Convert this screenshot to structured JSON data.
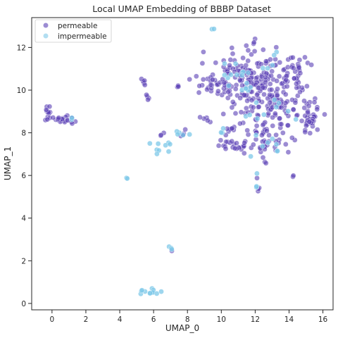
{
  "chart_data": {
    "type": "scatter",
    "title": "Local UMAP Embedding of BBBP Dataset",
    "xlabel": "UMAP_0",
    "ylabel": "UMAP_1",
    "xlim": [
      -1.2,
      16.6
    ],
    "ylim": [
      -0.3,
      13.4
    ],
    "xticks": [
      0,
      2,
      4,
      6,
      8,
      10,
      12,
      14,
      16
    ],
    "yticks": [
      0,
      2,
      4,
      6,
      8,
      10,
      12
    ],
    "grid": false,
    "legend_position": "top-left",
    "series": [
      {
        "name": "permeable",
        "color": "#5a3fb5",
        "clusters": [
          {
            "cx": -0.2,
            "cy": 8.9,
            "sx": 0.15,
            "sy": 0.2,
            "n": 12
          },
          {
            "cx": 0.5,
            "cy": 8.6,
            "sx": 0.4,
            "sy": 0.07,
            "n": 18
          },
          {
            "cx": 1.1,
            "cy": 8.55,
            "sx": 0.1,
            "sy": 0.1,
            "n": 4
          },
          {
            "cx": 5.5,
            "cy": 10.35,
            "sx": 0.12,
            "sy": 0.12,
            "n": 5
          },
          {
            "cx": 5.7,
            "cy": 9.75,
            "sx": 0.12,
            "sy": 0.12,
            "n": 4
          },
          {
            "cx": 6.4,
            "cy": 7.8,
            "sx": 0.1,
            "sy": 0.1,
            "n": 3
          },
          {
            "cx": 7.6,
            "cy": 10.15,
            "sx": 0.12,
            "sy": 0.05,
            "n": 3
          },
          {
            "cx": 7.6,
            "cy": 7.95,
            "sx": 0.2,
            "sy": 0.1,
            "n": 4
          },
          {
            "cx": 7.1,
            "cy": 2.4,
            "sx": 0.05,
            "sy": 0.05,
            "n": 1
          },
          {
            "cx": 9.0,
            "cy": 11.7,
            "sx": 0.05,
            "sy": 0.05,
            "n": 1
          },
          {
            "cx": 9.3,
            "cy": 10.3,
            "sx": 0.45,
            "sy": 0.25,
            "n": 20
          },
          {
            "cx": 9.3,
            "cy": 8.6,
            "sx": 0.3,
            "sy": 0.1,
            "n": 5
          },
          {
            "cx": 11.7,
            "cy": 10.6,
            "sx": 1.1,
            "sy": 0.7,
            "n": 150
          },
          {
            "cx": 12.8,
            "cy": 9.2,
            "sx": 1.0,
            "sy": 0.8,
            "n": 120
          },
          {
            "cx": 10.7,
            "cy": 7.4,
            "sx": 0.6,
            "sy": 0.15,
            "n": 20
          },
          {
            "cx": 12.6,
            "cy": 7.5,
            "sx": 0.5,
            "sy": 0.35,
            "n": 30
          },
          {
            "cx": 14.3,
            "cy": 10.7,
            "sx": 0.35,
            "sy": 0.5,
            "n": 30
          },
          {
            "cx": 15.2,
            "cy": 8.7,
            "sx": 0.35,
            "sy": 0.5,
            "n": 35
          },
          {
            "cx": 10.4,
            "cy": 8.2,
            "sx": 0.3,
            "sy": 0.3,
            "n": 8
          },
          {
            "cx": 12.0,
            "cy": 12.4,
            "sx": 0.08,
            "sy": 0.15,
            "n": 3
          },
          {
            "cx": 12.2,
            "cy": 5.4,
            "sx": 0.06,
            "sy": 0.06,
            "n": 3
          },
          {
            "cx": 14.3,
            "cy": 6.0,
            "sx": 0.05,
            "sy": 0.05,
            "n": 2
          },
          {
            "cx": 12.1,
            "cy": 5.85,
            "sx": 0.05,
            "sy": 0.05,
            "n": 1
          }
        ]
      },
      {
        "name": "impermeable",
        "color": "#7ec8e8",
        "clusters": [
          {
            "cx": 1.15,
            "cy": 8.6,
            "sx": 0.05,
            "sy": 0.05,
            "n": 2
          },
          {
            "cx": 4.4,
            "cy": 5.85,
            "sx": 0.05,
            "sy": 0.05,
            "n": 2
          },
          {
            "cx": 5.8,
            "cy": 7.55,
            "sx": 0.05,
            "sy": 0.05,
            "n": 1
          },
          {
            "cx": 6.5,
            "cy": 7.3,
            "sx": 0.25,
            "sy": 0.12,
            "n": 8
          },
          {
            "cx": 7.5,
            "cy": 7.9,
            "sx": 0.25,
            "sy": 0.12,
            "n": 5
          },
          {
            "cx": 5.8,
            "cy": 0.55,
            "sx": 0.25,
            "sy": 0.08,
            "n": 12
          },
          {
            "cx": 7.0,
            "cy": 2.55,
            "sx": 0.05,
            "sy": 0.05,
            "n": 3
          },
          {
            "cx": 9.5,
            "cy": 12.8,
            "sx": 0.08,
            "sy": 0.05,
            "n": 2
          },
          {
            "cx": 10.0,
            "cy": 8.1,
            "sx": 0.1,
            "sy": 0.1,
            "n": 3
          },
          {
            "cx": 11.5,
            "cy": 10.8,
            "sx": 0.9,
            "sy": 0.6,
            "n": 18
          },
          {
            "cx": 12.8,
            "cy": 9.0,
            "sx": 0.9,
            "sy": 0.7,
            "n": 15
          },
          {
            "cx": 12.9,
            "cy": 7.5,
            "sx": 0.3,
            "sy": 0.2,
            "n": 5
          },
          {
            "cx": 13.3,
            "cy": 11.6,
            "sx": 0.1,
            "sy": 0.1,
            "n": 2
          },
          {
            "cx": 12.1,
            "cy": 6.0,
            "sx": 0.05,
            "sy": 0.05,
            "n": 1
          },
          {
            "cx": 12.0,
            "cy": 5.45,
            "sx": 0.05,
            "sy": 0.05,
            "n": 2
          }
        ]
      }
    ]
  }
}
